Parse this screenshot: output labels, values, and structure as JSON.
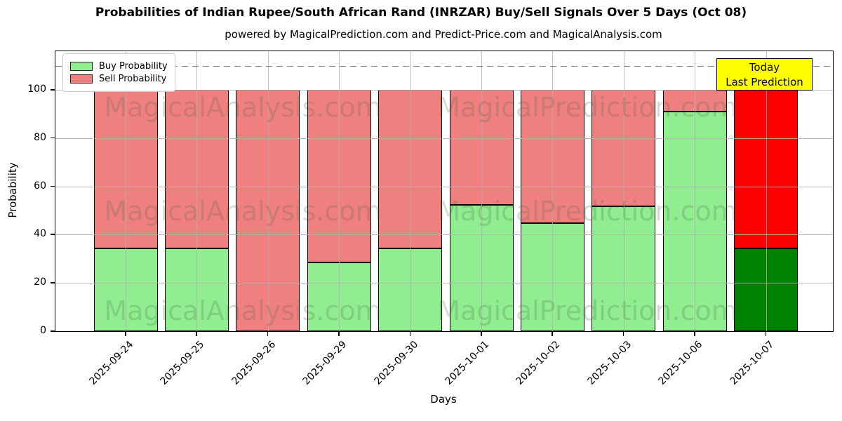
{
  "chart_data": {
    "type": "bar",
    "stacked": true,
    "title": "Probabilities of Indian Rupee/South African Rand (INRZAR) Buy/Sell Signals Over 5 Days (Oct 08)",
    "subtitle": "powered by MagicalPrediction.com and Predict-Price.com and MagicalAnalysis.com",
    "xlabel": "Days",
    "ylabel": "Probability",
    "categories": [
      "2025-09-24",
      "2025-09-25",
      "2025-09-26",
      "2025-09-29",
      "2025-09-30",
      "2025-10-01",
      "2025-10-02",
      "2025-10-03",
      "2025-10-06",
      "2025-10-07"
    ],
    "series": [
      {
        "name": "Buy Probability",
        "color": "#90EE90",
        "values": [
          34.4,
          34.4,
          0,
          28.4,
          34.4,
          52.2,
          44.8,
          51.8,
          91,
          34.4
        ]
      },
      {
        "name": "Sell Probability",
        "color": "#F08080",
        "values": [
          65.6,
          65.6,
          100,
          71.6,
          65.6,
          47.8,
          55.2,
          48.2,
          9,
          65.6
        ]
      }
    ],
    "today": {
      "index": 9,
      "buy_color": "#008000",
      "sell_color": "#FF0000"
    },
    "annotation": {
      "lines": [
        "Today",
        "Last Prediction"
      ],
      "bg_color": "#FFFF00"
    },
    "dashed_line_y": 110,
    "ylim": [
      0,
      116
    ],
    "yticks": [
      0,
      20,
      40,
      60,
      80,
      100
    ],
    "grid": true,
    "legend_position": "upper left",
    "watermarks": {
      "left": "MagicalAnalysis.com",
      "right": "MagicalPrediction.com"
    }
  }
}
